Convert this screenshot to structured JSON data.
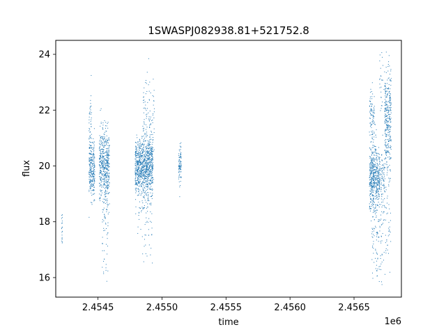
{
  "chart_data": {
    "type": "scatter",
    "title": "1SWASPJ082938.81+521752.8",
    "xlabel": "time",
    "ylabel": "flux",
    "x_offset_label": "1e6",
    "xlim": [
      2454170,
      2456870
    ],
    "ylim": [
      15.3,
      24.5
    ],
    "x_ticks": [
      2454500,
      2455000,
      2455500,
      2456000,
      2456500
    ],
    "x_tick_labels": [
      "2.4545",
      "2.4550",
      "2.4555",
      "2.4560",
      "2.4565"
    ],
    "y_ticks": [
      16,
      18,
      20,
      22,
      24
    ],
    "y_tick_labels": [
      "16",
      "18",
      "20",
      "22",
      "24"
    ],
    "grid": false,
    "marker_color": "#1f77b4",
    "clusters": [
      {
        "x_start": 2454215,
        "x_end": 2454222,
        "y_center": 17.8,
        "y_spread": 0.35,
        "count": 20
      },
      {
        "x_start": 2454430,
        "x_end": 2454475,
        "y_center": 19.9,
        "y_spread": 0.5,
        "count": 260
      },
      {
        "x_start": 2454430,
        "x_end": 2454450,
        "y_center": 21.3,
        "y_spread": 0.7,
        "count": 45
      },
      {
        "x_start": 2454510,
        "x_end": 2454590,
        "y_center": 20.0,
        "y_spread": 0.65,
        "count": 480
      },
      {
        "x_start": 2454530,
        "x_end": 2454580,
        "y_center": 18.0,
        "y_spread": 1.4,
        "count": 70
      },
      {
        "x_start": 2454790,
        "x_end": 2454930,
        "y_center": 19.95,
        "y_spread": 0.5,
        "count": 900
      },
      {
        "x_start": 2454850,
        "x_end": 2454940,
        "y_center": 21.6,
        "y_spread": 0.9,
        "count": 110
      },
      {
        "x_start": 2454810,
        "x_end": 2454930,
        "y_center": 18.3,
        "y_spread": 1.0,
        "count": 80
      },
      {
        "x_start": 2455130,
        "x_end": 2455150,
        "y_center": 19.95,
        "y_spread": 0.35,
        "count": 90
      },
      {
        "x_start": 2456620,
        "x_end": 2456700,
        "y_center": 19.6,
        "y_spread": 0.6,
        "count": 500
      },
      {
        "x_start": 2456620,
        "x_end": 2456660,
        "y_center": 21.8,
        "y_spread": 0.45,
        "count": 90
      },
      {
        "x_start": 2456640,
        "x_end": 2456720,
        "y_center": 17.5,
        "y_spread": 1.1,
        "count": 110
      },
      {
        "x_start": 2456700,
        "x_end": 2456740,
        "y_center": 19.5,
        "y_spread": 0.45,
        "count": 80
      },
      {
        "x_start": 2456740,
        "x_end": 2456790,
        "y_center": 21.5,
        "y_spread": 0.9,
        "count": 300
      },
      {
        "x_start": 2456700,
        "x_end": 2456790,
        "y_center": 23.0,
        "y_spread": 0.7,
        "count": 60
      },
      {
        "x_start": 2456720,
        "x_end": 2456790,
        "y_center": 18.0,
        "y_spread": 1.0,
        "count": 60
      }
    ]
  }
}
